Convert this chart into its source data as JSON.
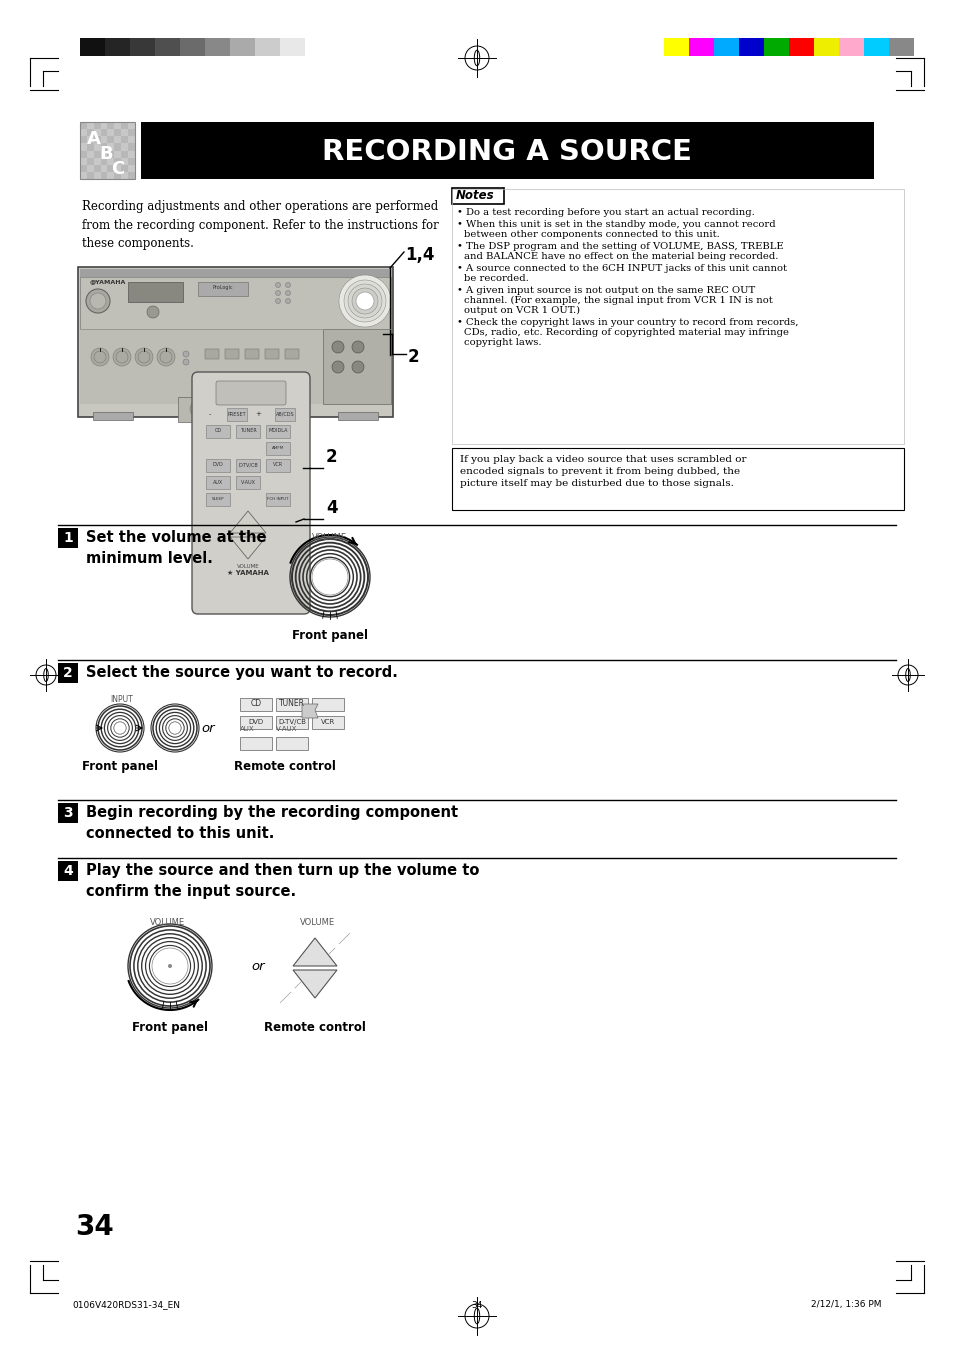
{
  "page_width": 9.54,
  "page_height": 13.51,
  "bg_color": "#ffffff",
  "title": "RECORDING A SOURCE",
  "title_bg": "#000000",
  "title_color": "#ffffff",
  "page_number": "34",
  "footer_left": "0106V420RDS31-34_EN",
  "footer_center": "34",
  "footer_right": "2/12/1, 1:36 PM",
  "intro_text": "Recording adjustments and other operations are performed\nfrom the recording component. Refer to the instructions for\nthese components.",
  "notes_title": "Notes",
  "notes": [
    "Do a test recording before you start an actual recording.",
    "When this unit is set in the standby mode, you cannot record\nbetween other components connected to this unit.",
    "The DSP program and the setting of VOLUME, BASS, TREBLE\nand BALANCE have no effect on the material being recorded.",
    "A source connected to the 6CH INPUT jacks of this unit cannot\nbe recorded.",
    "A given input source is not output on the same REC OUT\nchannel. (For example, the signal input from VCR 1 IN is not\noutput on VCR 1 OUT.)",
    "Check the copyright laws in your country to record from records,\nCDs, radio, etc. Recording of copyrighted material may infringe\ncopyright laws."
  ],
  "info_box_text": "If you play back a video source that uses scrambled or\nencoded signals to prevent it from being dubbed, the\npicture itself may be disturbed due to those signals.",
  "step1_title": "Set the volume at the\nminimum level.",
  "step1_label": "Front panel",
  "step2_title": "Select the source you want to record.",
  "step2_label1": "Front panel",
  "step2_label2": "Remote control",
  "step3_title": "Begin recording by the recording component\nconnected to this unit.",
  "step4_title": "Play the source and then turn up the volume to\nconfirm the input source.",
  "step4_label1": "Front panel",
  "step4_label2": "Remote control",
  "color_bars_left": [
    "#111111",
    "#252525",
    "#383838",
    "#4f4f4f",
    "#6b6b6b",
    "#888888",
    "#aaaaaa",
    "#cccccc",
    "#e8e8e8",
    "#ffffff"
  ],
  "color_bars_right": [
    "#ffff00",
    "#ff00ff",
    "#00aaff",
    "#0000cc",
    "#00aa00",
    "#ff0000",
    "#eeee00",
    "#ffaacc",
    "#00ccff",
    "#888888"
  ]
}
